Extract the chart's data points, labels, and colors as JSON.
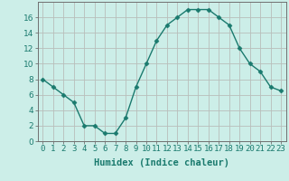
{
  "x": [
    0,
    1,
    2,
    3,
    4,
    5,
    6,
    7,
    8,
    9,
    10,
    11,
    12,
    13,
    14,
    15,
    16,
    17,
    18,
    19,
    20,
    21,
    22,
    23
  ],
  "y": [
    8,
    7,
    6,
    5,
    2,
    2,
    1,
    1,
    3,
    7,
    10,
    13,
    15,
    16,
    17,
    17,
    17,
    16,
    15,
    12,
    10,
    9,
    7,
    6.5
  ],
  "xlabel": "Humidex (Indice chaleur)",
  "xlim": [
    -0.5,
    23.5
  ],
  "ylim": [
    0,
    18
  ],
  "yticks": [
    0,
    2,
    4,
    6,
    8,
    10,
    12,
    14,
    16
  ],
  "line_color": "#1a7a6e",
  "marker": "D",
  "marker_size": 2.5,
  "bg_color": "#cceee8",
  "grid_color": "#b8beba",
  "tick_fontsize": 6.5,
  "xlabel_fontsize": 7.5,
  "xtick_labels": [
    "0",
    "1",
    "2",
    "3",
    "4",
    "5",
    "6",
    "7",
    "8",
    "9",
    "10",
    "11",
    "12",
    "13",
    "14",
    "15",
    "16",
    "17",
    "18",
    "19",
    "20",
    "21",
    "22",
    "23"
  ]
}
